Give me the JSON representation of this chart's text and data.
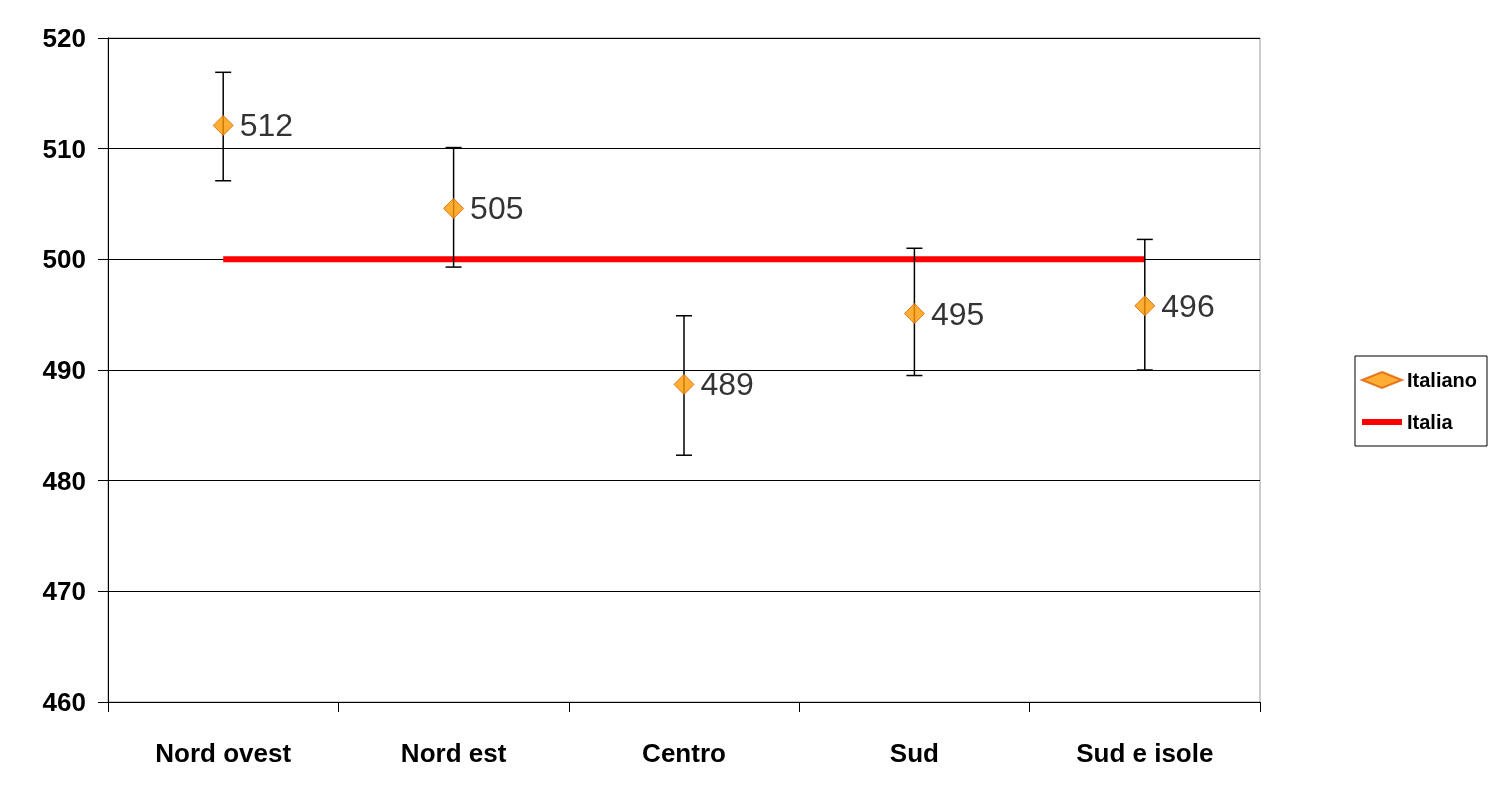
{
  "chart_data": {
    "type": "scatter",
    "categories": [
      "Nord ovest",
      "Nord est",
      "Centro",
      "Sud",
      "Sud e isole"
    ],
    "series": [
      {
        "name": "Italiano",
        "color": "#ff9900",
        "marker": "diamond",
        "values": [
          512.1,
          504.6,
          488.7,
          495.1,
          495.8
        ],
        "value_labels": [
          "512",
          "505",
          "489",
          "495",
          "496"
        ],
        "errors": [
          [
            507.1,
            516.9
          ],
          [
            499.3,
            510.1
          ],
          [
            482.3,
            494.9
          ],
          [
            489.5,
            501.0
          ],
          [
            490.0,
            501.8
          ]
        ]
      },
      {
        "name": "Italia",
        "type": "line",
        "color": "#ff0000",
        "marker": "none",
        "values": [
          500,
          500,
          500,
          500,
          500
        ]
      }
    ],
    "ylim": [
      460,
      520
    ],
    "yticks": [
      460,
      470,
      480,
      490,
      500,
      510,
      520
    ],
    "grid": "y",
    "legend": "right"
  }
}
